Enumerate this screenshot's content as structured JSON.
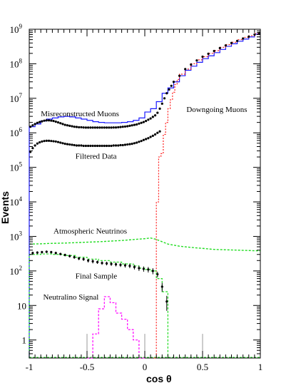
{
  "chart_data": {
    "type": "line",
    "xlabel": "cos θ",
    "ylabel": "Events",
    "yscale": "log",
    "xlim": [
      -1,
      1
    ],
    "ylim": [
      0.3,
      1000000000
    ],
    "x_ticks": [
      "-1",
      "-0.5",
      "0",
      "0.5",
      "1"
    ],
    "y_ticks": [
      {
        "value": 1,
        "base": "1",
        "exp": ""
      },
      {
        "value": 10,
        "base": "10",
        "exp": ""
      },
      {
        "value": 100,
        "base": "10",
        "exp": "2"
      },
      {
        "value": 1000,
        "base": "10",
        "exp": "3"
      },
      {
        "value": 10000,
        "base": "10",
        "exp": "4"
      },
      {
        "value": 100000,
        "base": "10",
        "exp": "5"
      },
      {
        "value": 1000000,
        "base": "10",
        "exp": "6"
      },
      {
        "value": 10000000,
        "base": "10",
        "exp": "7"
      },
      {
        "value": 100000000,
        "base": "10",
        "exp": "8"
      },
      {
        "value": 1000000000,
        "base": "10",
        "exp": "9"
      }
    ],
    "annotations": [
      {
        "text": "Downgoing Muons",
        "x": 0.36,
        "y": 4000000
      },
      {
        "text": "Misreconstructed Muons",
        "x": -0.9,
        "y": 3000000
      },
      {
        "text": "Filtered Data",
        "x": -0.6,
        "y": 180000
      },
      {
        "text": "Atmospheric Neutrinos",
        "x": -0.79,
        "y": 1200
      },
      {
        "text": "Final Sample",
        "x": -0.6,
        "y": 60
      },
      {
        "text": "Neutralino Signal",
        "x": -0.88,
        "y": 15
      }
    ],
    "series": [
      {
        "id": "misreconstructed-muons",
        "style": "step",
        "color": "#1a1aff",
        "bin_edges": [
          -1,
          -0.95,
          -0.9,
          -0.85,
          -0.8,
          -0.75,
          -0.7,
          -0.65,
          -0.6,
          -0.55,
          -0.5,
          -0.45,
          -0.4,
          -0.35,
          -0.3,
          -0.25,
          -0.2,
          -0.15,
          -0.1,
          -0.05,
          0,
          0.05,
          0.1,
          0.15,
          0.2,
          0.25,
          0.3,
          0.35,
          0.4,
          0.45,
          0.5,
          0.55,
          0.6,
          0.65,
          0.7,
          0.75,
          0.8,
          0.85,
          0.9,
          0.95,
          1
        ],
        "values": [
          1500000,
          1800000,
          2200000,
          2500000,
          2700000,
          2900000,
          3000000,
          2900000,
          2700000,
          2500000,
          2300000,
          2100000,
          2000000,
          1950000,
          1950000,
          1950000,
          2000000,
          2100000,
          2300000,
          2700000,
          4000000,
          5000000,
          8000000,
          14000000,
          20000000,
          30000000,
          45000000,
          65000000,
          85000000,
          110000000,
          140000000,
          170000000,
          210000000,
          260000000,
          320000000,
          380000000,
          450000000,
          520000000,
          600000000,
          720000000
        ]
      },
      {
        "id": "downgoing-muons",
        "style": "step",
        "color": "#ff2020",
        "dash": "2,2",
        "bin_edges": [
          0.08,
          0.1,
          0.12,
          0.14,
          0.16,
          0.18,
          0.2,
          0.22,
          0.24,
          0.26,
          0.28,
          0.3,
          0.35,
          0.4,
          0.45,
          0.5,
          0.55,
          0.6,
          0.65,
          0.7,
          0.75,
          0.8,
          0.85,
          0.9,
          0.95,
          1
        ],
        "values": [
          0.3,
          10000,
          200000,
          250000,
          900000,
          2000000,
          5000000,
          9000000,
          15000000,
          25000000,
          35000000,
          50000000,
          70000000,
          100000000,
          130000000,
          160000000,
          200000000,
          240000000,
          300000000,
          360000000,
          420000000,
          500000000,
          580000000,
          650000000,
          750000000
        ]
      },
      {
        "id": "filtered-data",
        "style": "markers",
        "color": "#000000",
        "x": [
          -0.99,
          -0.97,
          -0.95,
          -0.93,
          -0.91,
          -0.89,
          -0.87,
          -0.85,
          -0.83,
          -0.81,
          -0.79,
          -0.77,
          -0.75,
          -0.73,
          -0.71,
          -0.69,
          -0.67,
          -0.65,
          -0.63,
          -0.61,
          -0.59,
          -0.57,
          -0.55,
          -0.53,
          -0.51,
          -0.49,
          -0.47,
          -0.45,
          -0.43,
          -0.41,
          -0.39,
          -0.37,
          -0.35,
          -0.33,
          -0.31,
          -0.29,
          -0.27,
          -0.25,
          -0.23,
          -0.21,
          -0.19,
          -0.17,
          -0.15,
          -0.13,
          -0.11,
          -0.09,
          -0.07,
          -0.05,
          -0.03,
          -0.01,
          0.01,
          0.03,
          0.05,
          0.07,
          0.09,
          0.11,
          0.13
        ],
        "y": [
          280000,
          360000,
          430000,
          490000,
          530000,
          560000,
          580000,
          590000,
          590000,
          580000,
          570000,
          560000,
          540000,
          520000,
          500000,
          480000,
          470000,
          460000,
          450000,
          440000,
          430000,
          430000,
          430000,
          420000,
          420000,
          420000,
          420000,
          420000,
          420000,
          420000,
          420000,
          420000,
          420000,
          420000,
          420000,
          420000,
          430000,
          430000,
          430000,
          440000,
          440000,
          450000,
          460000,
          470000,
          480000,
          500000,
          520000,
          550000,
          580000,
          620000,
          660000,
          700000,
          760000,
          820000,
          900000,
          1000000,
          1100000
        ]
      },
      {
        "id": "filtered-data-upper",
        "style": "markers",
        "color": "#000000",
        "x": [
          -0.99,
          -0.97,
          -0.95,
          -0.93,
          -0.91,
          -0.89,
          -0.87,
          -0.85,
          -0.83,
          -0.81,
          -0.79,
          -0.77,
          -0.75,
          -0.73,
          -0.71,
          -0.69,
          -0.67,
          -0.65,
          -0.63,
          -0.61,
          -0.59,
          -0.57,
          -0.55,
          -0.53,
          -0.51,
          -0.49,
          -0.47,
          -0.45,
          -0.43,
          -0.41,
          -0.39,
          -0.37,
          -0.35,
          -0.33,
          -0.31,
          -0.29,
          -0.27,
          -0.25,
          -0.23,
          -0.21,
          -0.19,
          -0.17,
          -0.15,
          -0.13,
          -0.11,
          -0.09,
          -0.07,
          -0.05,
          -0.03,
          -0.01,
          0.01,
          0.03,
          0.05,
          0.07,
          0.09,
          0.11,
          0.13,
          0.15,
          0.17,
          0.19,
          0.21,
          0.23,
          0.25,
          0.3,
          0.35,
          0.4,
          0.45,
          0.5,
          0.55,
          0.6,
          0.65,
          0.7,
          0.75,
          0.8,
          0.85,
          0.9,
          0.95,
          0.99
        ],
        "y": [
          1500000,
          1650000,
          1800000,
          1950000,
          2050000,
          2150000,
          2250000,
          2300000,
          2300000,
          2250000,
          2200000,
          2100000,
          2000000,
          1900000,
          1800000,
          1700000,
          1650000,
          1600000,
          1550000,
          1500000,
          1480000,
          1450000,
          1450000,
          1430000,
          1420000,
          1420000,
          1420000,
          1420000,
          1420000,
          1420000,
          1420000,
          1420000,
          1420000,
          1420000,
          1420000,
          1420000,
          1430000,
          1430000,
          1450000,
          1470000,
          1500000,
          1520000,
          1550000,
          1600000,
          1650000,
          1700000,
          1750000,
          1850000,
          1950000,
          2050000,
          2200000,
          2400000,
          2600000,
          2900000,
          3200000,
          3800000,
          5000000,
          7000000,
          10000000,
          14000000,
          18000000,
          23000000,
          30000000,
          45000000,
          70000000,
          95000000,
          125000000,
          160000000,
          195000000,
          235000000,
          285000000,
          340000000,
          400000000,
          460000000,
          540000000,
          610000000,
          700000000,
          780000000
        ]
      },
      {
        "id": "atmospheric-neutrinos",
        "style": "line",
        "color": "#22dd22",
        "dash": "3,2",
        "x": [
          -1,
          -0.9,
          -0.8,
          -0.7,
          -0.6,
          -0.5,
          -0.4,
          -0.3,
          -0.2,
          -0.1,
          0,
          0.05,
          0.1,
          0.15,
          0.2,
          0.3,
          0.4,
          0.5,
          0.6,
          0.7,
          0.8,
          0.9,
          1
        ],
        "y": [
          600,
          610,
          630,
          640,
          660,
          680,
          700,
          730,
          760,
          810,
          860,
          900,
          820,
          700,
          600,
          520,
          480,
          450,
          420,
          410,
          400,
          390,
          380
        ]
      },
      {
        "id": "final-sample-mc",
        "style": "step",
        "color": "#22dd22",
        "dash": "3,2",
        "bin_edges": [
          -1,
          -0.9,
          -0.8,
          -0.7,
          -0.6,
          -0.5,
          -0.4,
          -0.3,
          -0.2,
          -0.1,
          -0.05,
          0,
          0.05,
          0.1,
          0.15,
          0.2
        ],
        "values": [
          300,
          310,
          300,
          280,
          250,
          220,
          200,
          180,
          160,
          140,
          120,
          110,
          100,
          60,
          25
        ]
      },
      {
        "id": "final-sample-data",
        "style": "markers-errors",
        "color": "#000000",
        "x": [
          -0.97,
          -0.93,
          -0.89,
          -0.85,
          -0.81,
          -0.77,
          -0.73,
          -0.69,
          -0.65,
          -0.61,
          -0.57,
          -0.53,
          -0.49,
          -0.45,
          -0.41,
          -0.37,
          -0.33,
          -0.29,
          -0.25,
          -0.21,
          -0.17,
          -0.13,
          -0.09,
          -0.05,
          -0.01,
          0.03,
          0.07,
          0.11,
          0.15,
          0.19
        ],
        "y": [
          330,
          340,
          350,
          360,
          350,
          330,
          310,
          290,
          270,
          250,
          230,
          220,
          200,
          190,
          180,
          170,
          165,
          160,
          155,
          150,
          145,
          140,
          130,
          120,
          115,
          110,
          100,
          80,
          35,
          13
        ],
        "err": [
          30,
          30,
          30,
          30,
          30,
          30,
          25,
          25,
          25,
          25,
          25,
          25,
          25,
          25,
          20,
          20,
          20,
          20,
          20,
          20,
          20,
          20,
          20,
          20,
          20,
          20,
          20,
          15,
          10,
          6
        ]
      },
      {
        "id": "neutralino-signal",
        "style": "step",
        "color": "#ff00ff",
        "dash": "3,2",
        "bin_edges": [
          -0.5,
          -0.45,
          -0.4,
          -0.35,
          -0.3,
          -0.25,
          -0.2,
          -0.15,
          -0.1,
          -0.05,
          0
        ],
        "values": [
          0.3,
          1.5,
          8,
          18,
          12,
          6,
          4,
          2,
          1,
          0.3
        ]
      },
      {
        "id": "gray-marks",
        "style": "vlines",
        "color": "#999999",
        "x": [
          -0.5,
          0.0,
          0.5
        ],
        "y": [
          0.5,
          0.5,
          0.5
        ]
      }
    ]
  }
}
